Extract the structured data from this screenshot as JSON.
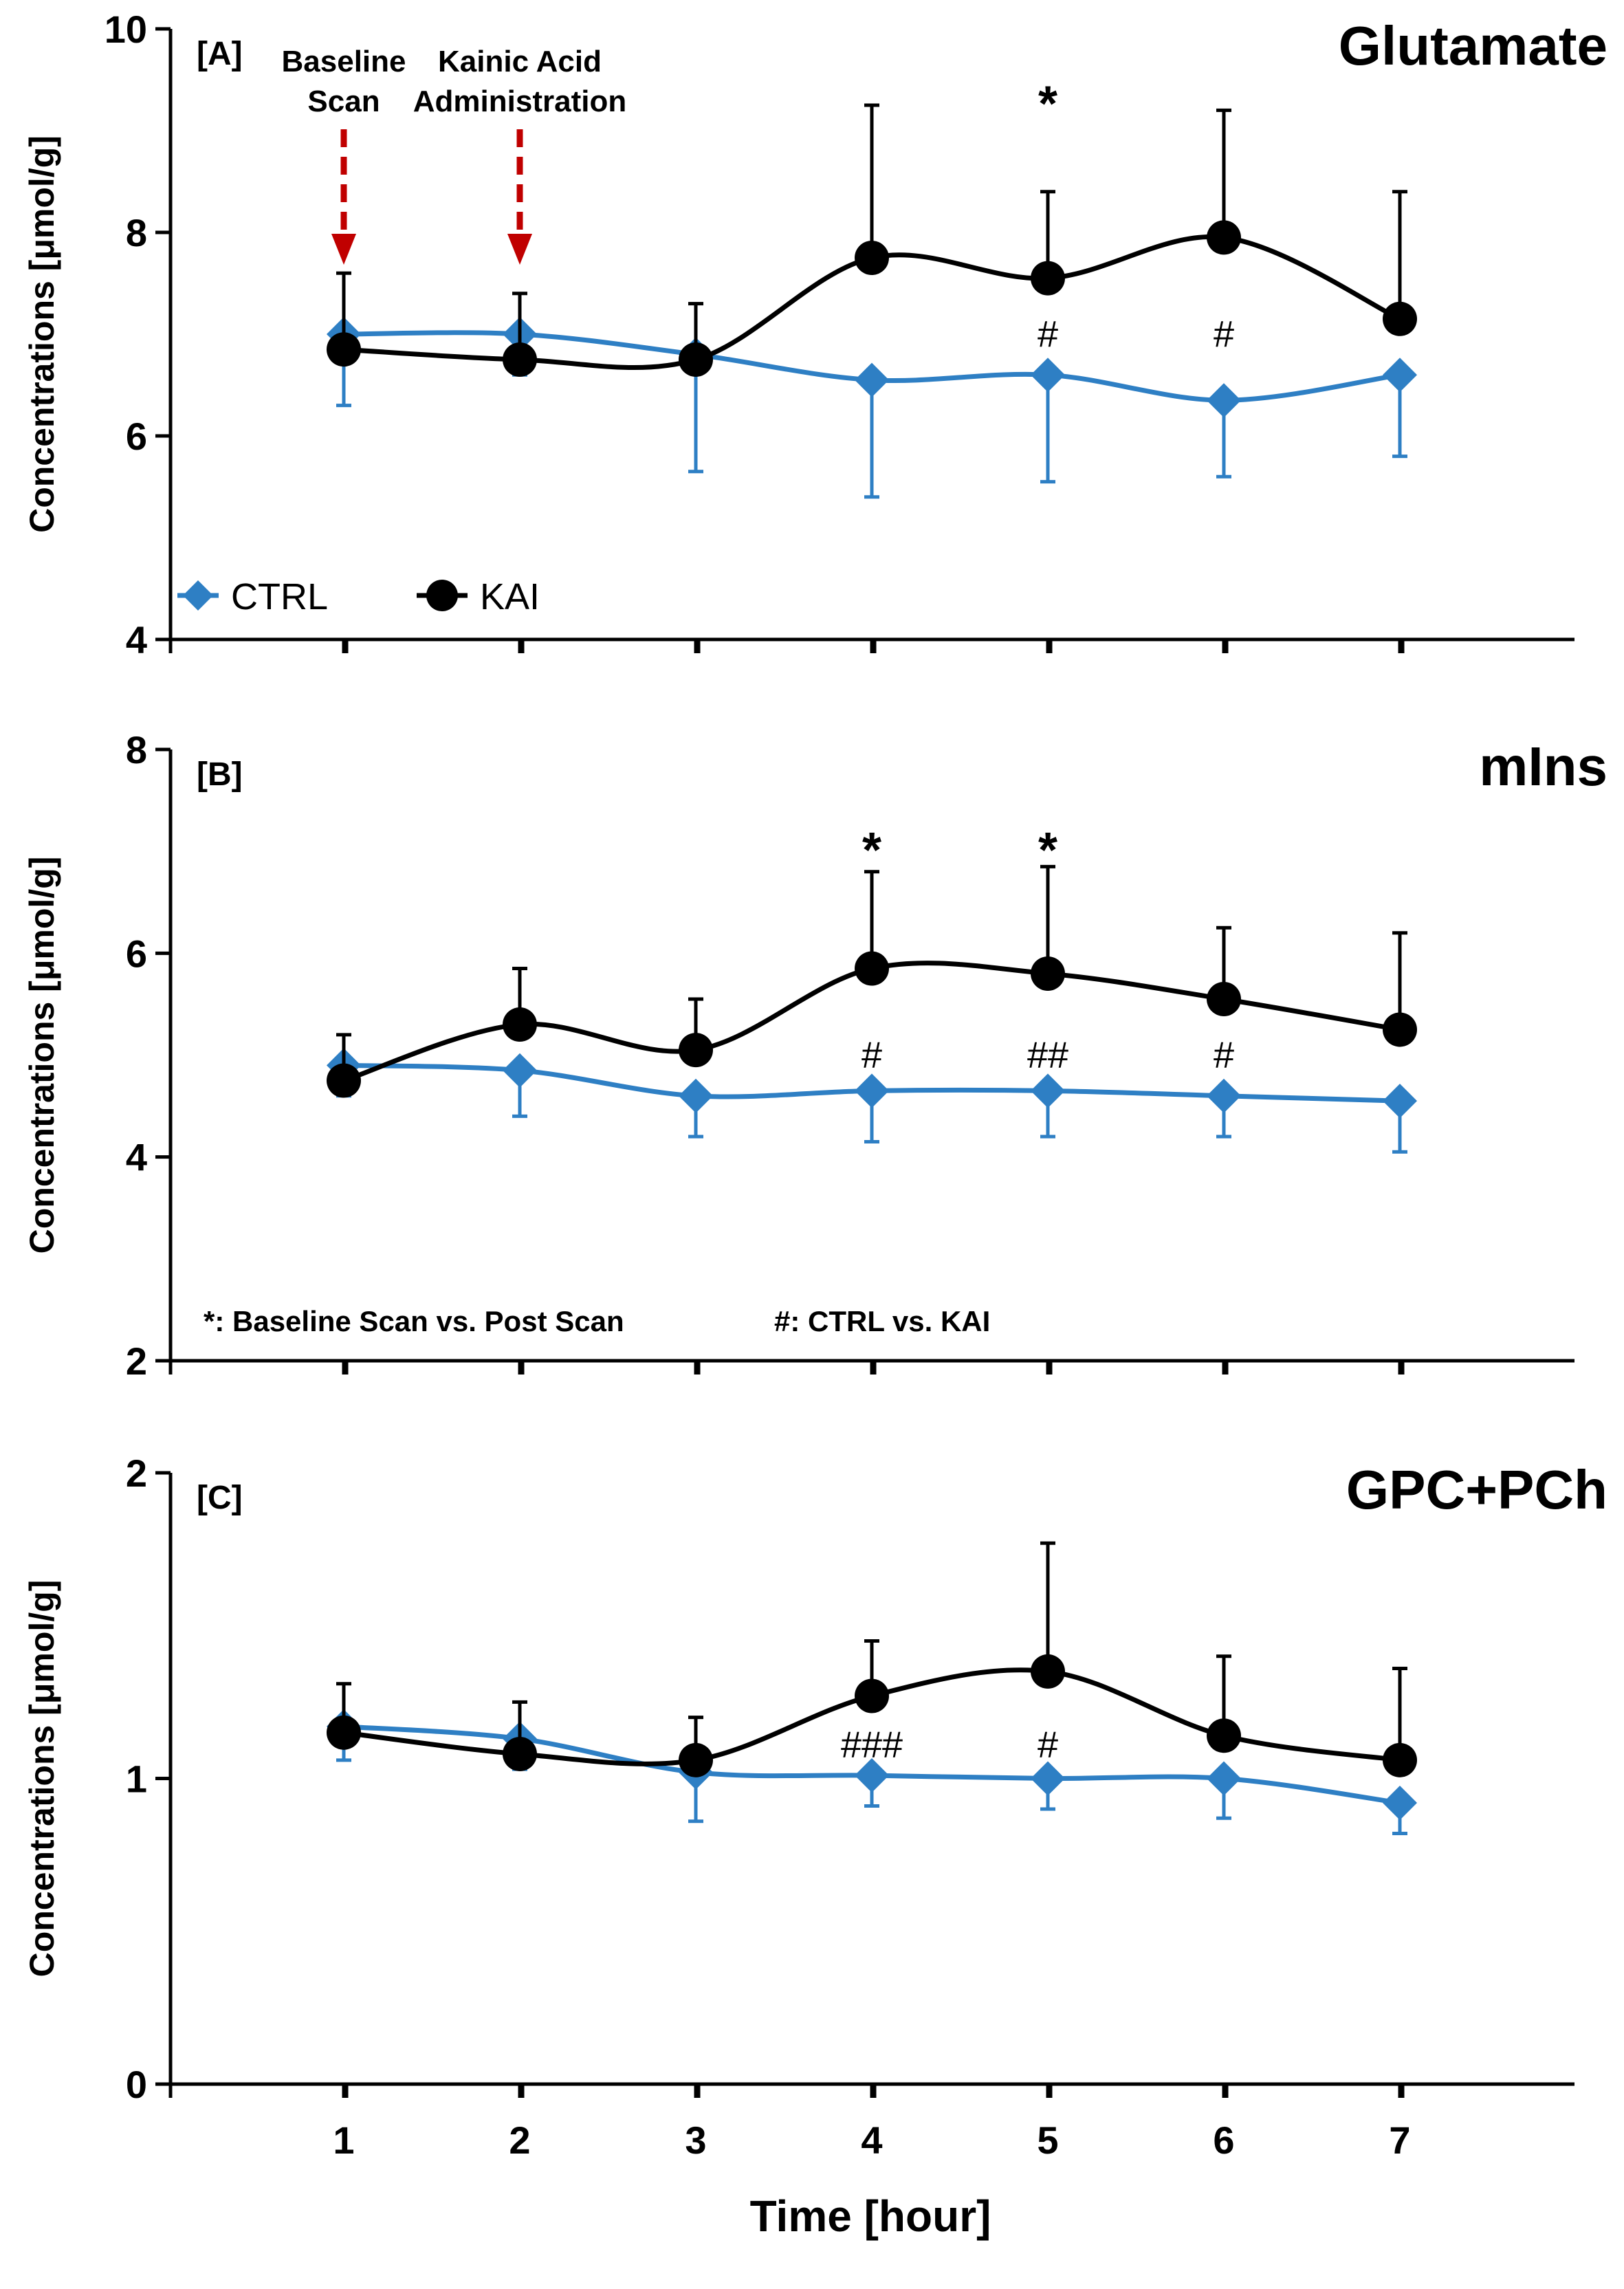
{
  "chart_data": [
    {
      "type": "line",
      "panel_label": "[A]",
      "title": "Glutamate",
      "ylabel": "Concentrations [μmol/g]",
      "ylim": [
        4,
        10
      ],
      "yticks": [
        "4",
        "6",
        "8",
        "10"
      ],
      "x": [
        1,
        2,
        3,
        4,
        5,
        6,
        7
      ],
      "series": [
        {
          "name": "CTRL",
          "values": [
            7.0,
            7.0,
            6.8,
            6.55,
            6.6,
            6.35,
            6.6
          ],
          "err": [
            0.7,
            0.4,
            1.15,
            1.15,
            1.05,
            0.75,
            0.8
          ],
          "err_dir": "down"
        },
        {
          "name": "KAI",
          "values": [
            6.85,
            6.75,
            6.75,
            7.75,
            7.55,
            7.95,
            7.15
          ],
          "err": [
            0.75,
            0.65,
            0.55,
            1.5,
            0.85,
            1.25,
            1.25
          ],
          "err_dir": "up"
        }
      ],
      "annotations": [
        {
          "x": 5,
          "text": "*",
          "kind": "star",
          "y": 9.3
        },
        {
          "x": 5,
          "text": "#",
          "kind": "hash",
          "y": 7.0
        },
        {
          "x": 6,
          "text": "#",
          "kind": "hash",
          "y": 7.0
        }
      ],
      "arrows": [
        {
          "x": 1,
          "label1": "Baseline",
          "label2": "Scan"
        },
        {
          "x": 2,
          "label1": "Kainic Acid",
          "label2": "Administration"
        }
      ]
    },
    {
      "type": "line",
      "panel_label": "[B]",
      "title": "mIns",
      "ylabel": "Concentrations [μmol/g]",
      "ylim": [
        2,
        8
      ],
      "yticks": [
        "2",
        "4",
        "6",
        "8"
      ],
      "x": [
        1,
        2,
        3,
        4,
        5,
        6,
        7
      ],
      "series": [
        {
          "name": "CTRL",
          "values": [
            4.9,
            4.85,
            4.6,
            4.65,
            4.65,
            4.6,
            4.55
          ],
          "err": [
            0.3,
            0.45,
            0.4,
            0.5,
            0.45,
            0.4,
            0.5
          ],
          "err_dir": "down"
        },
        {
          "name": "KAI",
          "values": [
            4.75,
            5.3,
            5.05,
            5.85,
            5.8,
            5.55,
            5.25
          ],
          "err": [
            0.45,
            0.55,
            0.5,
            0.95,
            1.05,
            0.7,
            0.95
          ],
          "err_dir": "up"
        }
      ],
      "annotations": [
        {
          "x": 4,
          "text": "*",
          "kind": "star",
          "y": 7.05
        },
        {
          "x": 5,
          "text": "*",
          "kind": "star",
          "y": 7.05
        },
        {
          "x": 4,
          "text": "#",
          "kind": "hash",
          "y": 5.0
        },
        {
          "x": 5,
          "text": "##",
          "kind": "hash",
          "y": 5.0
        },
        {
          "x": 6,
          "text": "#",
          "kind": "hash",
          "y": 5.0
        }
      ],
      "footnotes": [
        "*: Baseline Scan vs. Post Scan",
        "#: CTRL vs. KAI"
      ]
    },
    {
      "type": "line",
      "panel_label": "[C]",
      "title": "GPC+PCh",
      "ylabel": "Concentrations [μmol/g]",
      "ylim": [
        0,
        2
      ],
      "yticks": [
        "0",
        "1",
        "2"
      ],
      "x": [
        1,
        2,
        3,
        4,
        5,
        6,
        7
      ],
      "series": [
        {
          "name": "CTRL",
          "values": [
            1.17,
            1.13,
            1.02,
            1.01,
            1.0,
            1.0,
            0.92
          ],
          "err": [
            0.11,
            0.1,
            0.16,
            0.1,
            0.1,
            0.13,
            0.1
          ],
          "err_dir": "down"
        },
        {
          "name": "KAI",
          "values": [
            1.15,
            1.08,
            1.06,
            1.27,
            1.35,
            1.14,
            1.06
          ],
          "err": [
            0.16,
            0.17,
            0.14,
            0.18,
            0.42,
            0.26,
            0.3
          ],
          "err_dir": "up"
        }
      ],
      "annotations": [
        {
          "x": 4,
          "text": "###",
          "kind": "hash",
          "y": 1.11
        },
        {
          "x": 5,
          "text": "#",
          "kind": "hash",
          "y": 1.11
        }
      ]
    }
  ],
  "xaxis": {
    "label": "Time [hour]",
    "ticks": [
      "1",
      "2",
      "3",
      "4",
      "5",
      "6",
      "7"
    ]
  },
  "legend": {
    "ctrl": "CTRL",
    "kai": "KAI"
  },
  "colors": {
    "ctrl": "#2E7FC4",
    "kai": "#000000",
    "arrow": "#C00000",
    "axis": "#000000"
  }
}
